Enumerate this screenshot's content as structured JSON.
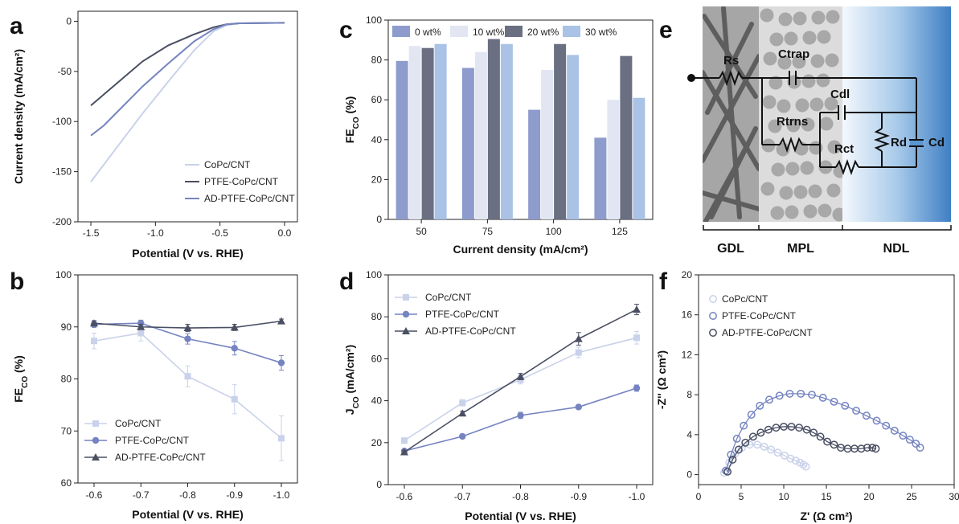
{
  "colors": {
    "light": "#c9d2ea",
    "mid": "#7584c0",
    "dark": "#4a4f63",
    "pale": "#e1e6f2",
    "sky": "#a9c2e6"
  },
  "chart_data": [
    {
      "type": "line",
      "panel": "a",
      "xlabel": "Potential (V vs. RHE)",
      "ylabel": "Current density (mA/cm²)",
      "xlim": [
        -1.6,
        0.1
      ],
      "ylim": [
        -200,
        10
      ],
      "xticks": [
        "-1.5",
        "-1.0",
        "-0.5",
        "0.0"
      ],
      "yticks": [
        "-200",
        "-150",
        "-100",
        "-50",
        "0"
      ],
      "series": [
        {
          "name": "CoPc/CNT",
          "color": "#c9d2ea",
          "x": [
            -1.5,
            -1.3,
            -1.1,
            -0.9,
            -0.7,
            -0.55,
            -0.45,
            -0.35,
            0.0
          ],
          "y": [
            -160,
            -126,
            -92,
            -60,
            -29,
            -10,
            -4,
            -2,
            -1.5
          ]
        },
        {
          "name": "PTFE-CoPc/CNT",
          "color": "#4a4f63",
          "x": [
            -1.5,
            -1.3,
            -1.1,
            -0.9,
            -0.7,
            -0.55,
            -0.45,
            -0.35,
            0.0
          ],
          "y": [
            -84,
            -62,
            -40,
            -24,
            -13,
            -6,
            -3,
            -2,
            -1.5
          ]
        },
        {
          "name": "AD-PTFE-CoPc/CNT",
          "color": "#7584c0",
          "x": [
            -1.5,
            -1.4,
            -1.3,
            -1.1,
            -0.9,
            -0.7,
            -0.55,
            -0.45,
            -0.35,
            0.0
          ],
          "y": [
            -114,
            -104,
            -91,
            -65,
            -42,
            -20,
            -8,
            -3,
            -2,
            -1.5
          ]
        }
      ]
    },
    {
      "type": "bar",
      "panel": "c",
      "xlabel": "Current density (mA/cm²)",
      "ylabel": "FE_CO (%)",
      "ylim": [
        0,
        100
      ],
      "yticks": [
        "0",
        "20",
        "40",
        "60",
        "80",
        "100"
      ],
      "categories": [
        "50",
        "75",
        "100",
        "125"
      ],
      "series": [
        {
          "name": "0 wt%",
          "color": "#8d9ccd",
          "values": [
            79.5,
            76,
            55,
            41
          ]
        },
        {
          "name": "10 wt%",
          "color": "#e1e6f2",
          "values": [
            87,
            84,
            75,
            60
          ]
        },
        {
          "name": "20 wt%",
          "color": "#6a6f82",
          "values": [
            86,
            90.5,
            88,
            82
          ]
        },
        {
          "name": "30 wt%",
          "color": "#a9c2e6",
          "values": [
            88,
            88,
            82.5,
            61
          ]
        }
      ]
    },
    {
      "type": "line",
      "panel": "b",
      "xlabel": "Potential (V vs. RHE)",
      "ylabel": "FE_CO (%)",
      "ylim": [
        60,
        100
      ],
      "yticks": [
        "60",
        "70",
        "80",
        "90",
        "100"
      ],
      "categories": [
        "-0.6",
        "-0.7",
        "-0.8",
        "-0.9",
        "-1.0"
      ],
      "series": [
        {
          "name": "CoPc/CNT",
          "marker": "square",
          "color": "#c9d2ea",
          "values": [
            87.3,
            88.8,
            80.5,
            76.1,
            68.6
          ],
          "err": [
            1.5,
            1.5,
            2,
            2.8,
            4.3
          ]
        },
        {
          "name": "PTFE-CoPc/CNT",
          "marker": "circle",
          "color": "#7584c0",
          "values": [
            90.5,
            90.7,
            87.7,
            85.9,
            83.1
          ],
          "err": [
            0.6,
            0.6,
            1,
            1.3,
            1.4
          ]
        },
        {
          "name": "AD-PTFE-CoPc/CNT",
          "marker": "triangle",
          "color": "#4a4f63",
          "values": [
            90.7,
            90.0,
            89.8,
            89.9,
            91.1
          ],
          "err": [
            0.5,
            0.5,
            0.7,
            0.6,
            0.4
          ]
        }
      ]
    },
    {
      "type": "line",
      "panel": "d",
      "xlabel": "Potential (V vs. RHE)",
      "ylabel": "J_CO (mA/cm²)",
      "ylim": [
        0,
        100
      ],
      "yticks": [
        "0",
        "20",
        "40",
        "60",
        "80",
        "100"
      ],
      "categories": [
        "-0.6",
        "-0.7",
        "-0.8",
        "-0.9",
        "-1.0"
      ],
      "series": [
        {
          "name": "CoPc/CNT",
          "marker": "square",
          "color": "#c9d2ea",
          "values": [
            21,
            39,
            50,
            63,
            70
          ],
          "err": [
            1,
            1.5,
            2,
            2.5,
            3
          ]
        },
        {
          "name": "PTFE-CoPc/CNT",
          "marker": "circle",
          "color": "#7584c0",
          "values": [
            16,
            23,
            33,
            37,
            46
          ],
          "err": [
            0.5,
            0.8,
            1.5,
            1,
            1.5
          ]
        },
        {
          "name": "AD-PTFE-CoPc/CNT",
          "marker": "triangle",
          "color": "#4a4f63",
          "values": [
            15.5,
            34,
            51.5,
            69.5,
            83.5
          ],
          "err": [
            0.8,
            1,
            1.5,
            3,
            2.5
          ]
        }
      ]
    },
    {
      "type": "scatter",
      "panel": "f",
      "xlabel": "Z' (Ω cm²)",
      "ylabel": "-Z'' (Ω cm²)",
      "xlim": [
        0,
        30
      ],
      "ylim": [
        -1,
        20
      ],
      "xticks": [
        "0",
        "5",
        "10",
        "15",
        "20",
        "25",
        "30"
      ],
      "yticks": [
        "0",
        "4",
        "8",
        "12",
        "16",
        "20"
      ],
      "series": [
        {
          "name": "CoPc/CNT",
          "color": "#c9d2ea",
          "x": [
            3,
            3.6,
            4.3,
            5.1,
            6.0,
            6.9,
            7.7,
            8.5,
            9.3,
            10.1,
            10.8,
            11.4,
            11.9,
            12.3,
            12.6
          ],
          "y": [
            0.2,
            1.2,
            2.1,
            2.7,
            3.0,
            3.0,
            2.8,
            2.5,
            2.2,
            1.9,
            1.6,
            1.4,
            1.2,
            1.0,
            0.8
          ]
        },
        {
          "name": "PTFE-CoPc/CNT",
          "color": "#7584c0",
          "x": [
            3.2,
            3.8,
            4.5,
            5.3,
            6.2,
            7.2,
            8.3,
            9.5,
            10.7,
            12.0,
            13.3,
            14.6,
            15.9,
            17.2,
            18.5,
            19.7,
            20.9,
            22.0,
            23.0,
            24.0,
            24.8,
            25.5,
            26.0
          ],
          "y": [
            0.4,
            2.0,
            3.6,
            4.9,
            6.0,
            6.9,
            7.5,
            7.9,
            8.1,
            8.1,
            8.0,
            7.7,
            7.3,
            6.9,
            6.4,
            5.9,
            5.4,
            4.9,
            4.4,
            3.9,
            3.5,
            3.1,
            2.7
          ]
        },
        {
          "name": "AD-PTFE-CoPc/CNT",
          "color": "#4a4f63",
          "x": [
            3.4,
            4.0,
            4.7,
            5.5,
            6.4,
            7.3,
            8.2,
            9.1,
            10.0,
            10.9,
            11.8,
            12.7,
            13.5,
            14.3,
            15.1,
            15.9,
            16.7,
            17.5,
            18.3,
            19.1,
            19.8,
            20.4,
            20.8
          ],
          "y": [
            0.3,
            1.5,
            2.5,
            3.2,
            3.8,
            4.2,
            4.5,
            4.7,
            4.8,
            4.8,
            4.7,
            4.5,
            4.2,
            3.8,
            3.3,
            3.0,
            2.7,
            2.6,
            2.6,
            2.6,
            2.7,
            2.7,
            2.6
          ]
        }
      ]
    }
  ],
  "panels": {
    "a": "a",
    "b": "b",
    "c": "c",
    "d": "d",
    "e": "e",
    "f": "f"
  },
  "circuit": {
    "rs": "Rs",
    "ctrap": "Ctrap",
    "cdl": "Cdl",
    "rtrns": "Rtrns",
    "rct": "Rct",
    "rd": "Rd",
    "cd": "Cd",
    "layers": [
      "GDL",
      "MPL",
      "NDL"
    ]
  }
}
